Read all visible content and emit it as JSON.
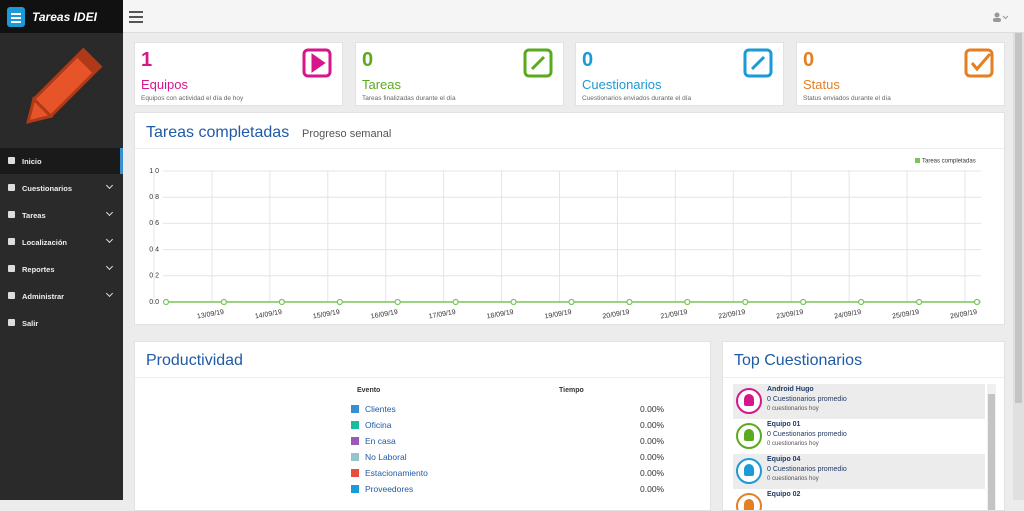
{
  "header": {
    "brand": "Tareas IDEI"
  },
  "sidebar": {
    "menu": [
      {
        "label": "Inicio",
        "active": true
      },
      {
        "label": "Cuestionarios",
        "expandable": true
      },
      {
        "label": "Tareas",
        "expandable": true
      },
      {
        "label": "Localización",
        "expandable": true
      },
      {
        "label": "Reportes",
        "expandable": true
      },
      {
        "label": "Administrar",
        "expandable": true
      },
      {
        "label": "Salir"
      }
    ]
  },
  "cards": [
    {
      "value": "1",
      "title": "Equipos",
      "subtitle": "Equipos con actividad el día de hoy",
      "color": "#d6168b"
    },
    {
      "value": "0",
      "title": "Tareas",
      "subtitle": "Tareas finalizadas durante el día",
      "color": "#5aaa1e"
    },
    {
      "value": "0",
      "title": "Cuestionarios",
      "subtitle": "Cuestionarios enviados durante el día",
      "color": "#1a9ad6"
    },
    {
      "value": "0",
      "title": "Status",
      "subtitle": "Status enviados durante el día",
      "color": "#e67e22"
    }
  ],
  "chart_data": {
    "type": "line",
    "title": "Tareas completadas",
    "subtitle": "Progreso semanal",
    "categories": [
      null,
      "13/09/19",
      "14/09/19",
      "15/09/19",
      "16/09/19",
      "17/09/19",
      "18/09/19",
      "19/09/19",
      "20/09/19",
      "21/09/19",
      "22/09/19",
      "23/09/19",
      "24/09/19",
      "25/09/19",
      "26/09/19"
    ],
    "series": [
      {
        "name": "Tareas completadas",
        "color": "#7cc35a",
        "values": [
          0,
          0,
          0,
          0,
          0,
          0,
          0,
          0,
          0,
          0,
          0,
          0,
          0,
          0,
          0
        ]
      }
    ],
    "ylim": [
      0,
      1
    ],
    "yticks": [
      {
        "value": 0,
        "label": "0.0"
      },
      0.2,
      0.4,
      0.6,
      0.8,
      {
        "value": 1,
        "label": "1.0"
      }
    ],
    "grid": true,
    "legend": "top-right"
  },
  "productividad": {
    "title": "Productividad",
    "headers": [
      "Evento",
      "Tiempo"
    ],
    "rows": [
      {
        "name": "Clientes",
        "color": "#3a8fd0",
        "value": "0.00%"
      },
      {
        "name": "Oficina",
        "color": "#1abc9c",
        "value": "0.00%"
      },
      {
        "name": "En casa",
        "color": "#9b59b6",
        "value": "0.00%"
      },
      {
        "name": "No Laboral",
        "color": "#95c4cc",
        "value": "0.00%"
      },
      {
        "name": "Estacionamiento",
        "color": "#e74c3c",
        "value": "0.00%"
      },
      {
        "name": "Proveedores",
        "color": "#1a9ad6",
        "value": "0.00%"
      }
    ]
  },
  "top": {
    "title": "Top Cuestionarios",
    "items": [
      {
        "name": "Android Hugo",
        "count": "0 Cuestionarios promedio",
        "today": "0 cuestionarios hoy",
        "color": "#d6168b"
      },
      {
        "name": "Equipo 01",
        "count": "0 Cuestionarios promedio",
        "today": "0 cuestionarios hoy",
        "color": "#5aaa1e"
      },
      {
        "name": "Equipo 04",
        "count": "0 Cuestionarios promedio",
        "today": "0 cuestionarios hoy",
        "color": "#1a9ad6"
      },
      {
        "name": "Equipo 02",
        "color": "#e67e22"
      }
    ]
  }
}
